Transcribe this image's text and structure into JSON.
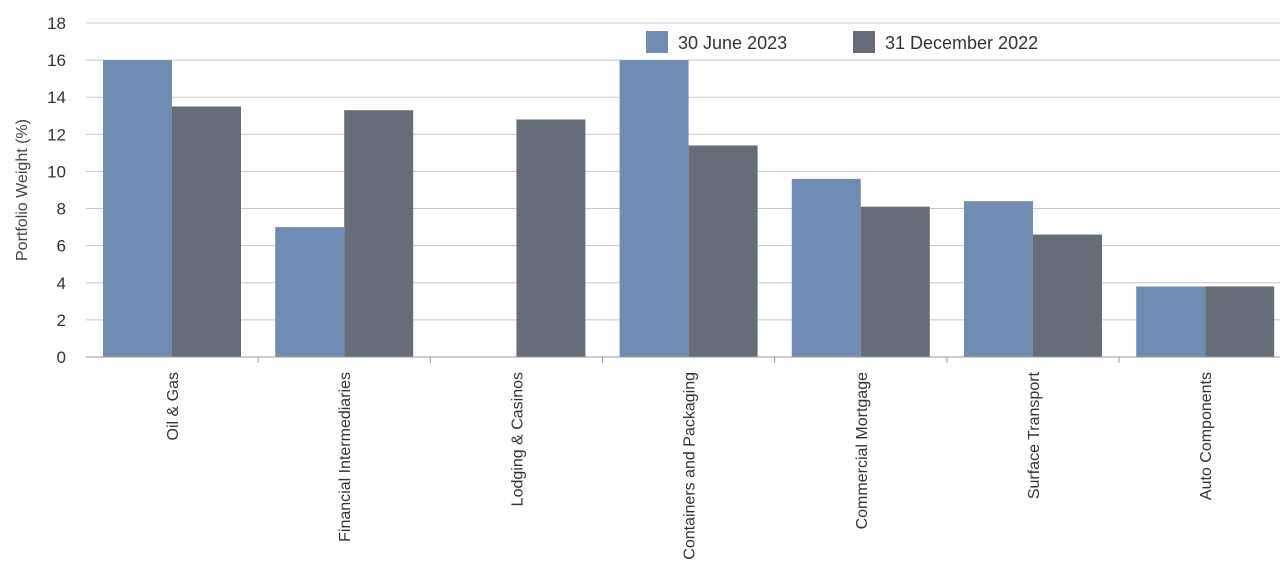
{
  "chart_data": {
    "type": "bar",
    "ylabel": "Portfolio Weight (%)",
    "xlabel": "",
    "ylim": [
      0,
      18
    ],
    "yticks": [
      0,
      2,
      4,
      6,
      8,
      10,
      12,
      14,
      16,
      18
    ],
    "grid": true,
    "legend_position": "top-right",
    "categories": [
      "Oil & Gas",
      "Financial Intermediaries",
      "Lodging & Casinos",
      "Containers and Packaging",
      "Commercial Mortgage",
      "Surface Transport",
      "Auto Components"
    ],
    "series": [
      {
        "name": "30 June 2023",
        "color": "#6f8db3",
        "values": [
          16.0,
          7.0,
          0.0,
          16.0,
          9.6,
          8.4,
          3.8
        ]
      },
      {
        "name": "31 December 2022",
        "color": "#666d76",
        "values": [
          13.5,
          13.3,
          12.8,
          11.4,
          8.1,
          6.6,
          3.8
        ]
      }
    ]
  }
}
